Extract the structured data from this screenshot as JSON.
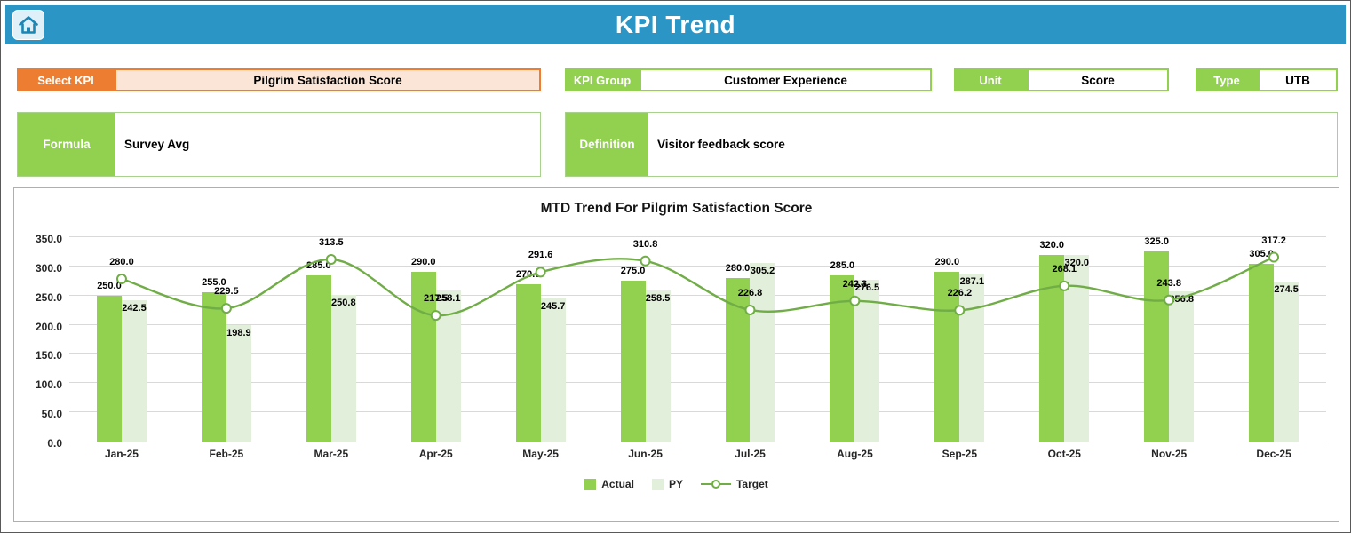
{
  "header": {
    "title": "KPI Trend"
  },
  "filters": {
    "select_kpi": {
      "label": "Select KPI",
      "value": "Pilgrim Satisfaction Score"
    },
    "kpi_group": {
      "label": "KPI Group",
      "value": "Customer Experience"
    },
    "unit": {
      "label": "Unit",
      "value": "Score"
    },
    "type": {
      "label": "Type",
      "value": "UTB"
    }
  },
  "details": {
    "formula": {
      "label": "Formula",
      "value": "Survey Avg"
    },
    "definition": {
      "label": "Definition",
      "value": "Visitor feedback score"
    }
  },
  "chart_data": {
    "type": "bar",
    "title": "MTD Trend For Pilgrim Satisfaction Score",
    "categories": [
      "Jan-25",
      "Feb-25",
      "Mar-25",
      "Apr-25",
      "May-25",
      "Jun-25",
      "Jul-25",
      "Aug-25",
      "Sep-25",
      "Oct-25",
      "Nov-25",
      "Dec-25"
    ],
    "series": [
      {
        "name": "Actual",
        "type": "bar",
        "color": "#92D050",
        "values": [
          250.0,
          255.0,
          285.0,
          290.0,
          270.0,
          275.0,
          280.0,
          285.0,
          290.0,
          320.0,
          325.0,
          305.0
        ]
      },
      {
        "name": "PY",
        "type": "bar",
        "color": "#E2EFDA",
        "values": [
          242.5,
          198.9,
          250.8,
          258.1,
          245.7,
          258.5,
          305.2,
          276.5,
          287.1,
          320.0,
          256.8,
          274.5
        ]
      },
      {
        "name": "Target",
        "type": "line",
        "color": "#70AD47",
        "values": [
          280.0,
          229.5,
          313.5,
          217.5,
          291.6,
          310.8,
          226.8,
          242.3,
          226.2,
          268.1,
          243.8,
          317.2
        ]
      }
    ],
    "ylim": [
      0,
      350
    ],
    "ytick_step": 50,
    "grid": true,
    "legend_position": "bottom"
  },
  "colors": {
    "header_bg": "#2B96C5",
    "green": "#92D050",
    "orange": "#ED7D31",
    "orange_light": "#FBE5D6",
    "py_fill": "#E2EFDA",
    "target_line": "#70AD47",
    "grid": "#D9D9D9",
    "box_border": "#A9D18E"
  }
}
